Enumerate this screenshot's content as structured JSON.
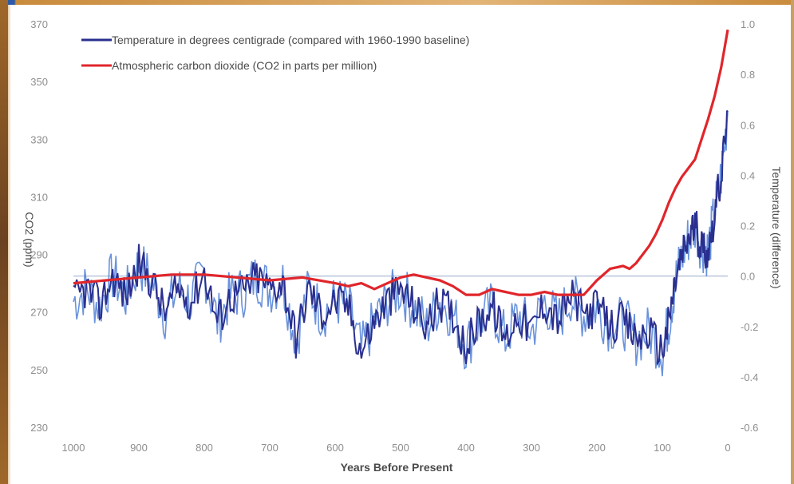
{
  "chart_data": {
    "type": "line",
    "title": "",
    "xlabel": "Years Before Present",
    "ylabel_left": "CO2 (ppm)",
    "ylabel_right": "Temperature (difference)",
    "xlim": [
      1000,
      0
    ],
    "ylim_left": [
      230,
      370
    ],
    "ylim_right": [
      -0.6,
      1.0
    ],
    "x_ticks": [
      "1000",
      "900",
      "800",
      "700",
      "600",
      "500",
      "400",
      "300",
      "200",
      "100",
      "0"
    ],
    "y_left_ticks": [
      "370",
      "350",
      "330",
      "310",
      "290",
      "270",
      "250",
      "230"
    ],
    "y_right_ticks": [
      "1.0",
      "0.8",
      "0.6",
      "0.4",
      "0.2",
      "0.0",
      "-0.2",
      "-0.4",
      "-0.6"
    ],
    "legend_position": "top-left",
    "grid": false,
    "baseline_y_right": 0.0,
    "series": [
      {
        "name": "Temperature in degrees centigrade (compared with 1960-1990 baseline)",
        "axis": "right",
        "color": "#2a2f8f",
        "x": [
          1000,
          980,
          960,
          940,
          920,
          900,
          880,
          860,
          840,
          820,
          800,
          780,
          760,
          740,
          720,
          700,
          680,
          660,
          640,
          620,
          600,
          580,
          560,
          540,
          520,
          500,
          480,
          460,
          440,
          420,
          400,
          380,
          360,
          340,
          320,
          300,
          280,
          260,
          240,
          220,
          200,
          180,
          160,
          140,
          120,
          100,
          90,
          80,
          70,
          60,
          50,
          40,
          30,
          20,
          10,
          0
        ],
        "y": [
          -0.1,
          -0.05,
          -0.12,
          0.0,
          -0.08,
          0.05,
          -0.02,
          -0.15,
          -0.05,
          -0.1,
          0.02,
          -0.18,
          -0.08,
          -0.06,
          0.0,
          -0.05,
          -0.02,
          -0.25,
          -0.05,
          -0.15,
          -0.1,
          -0.12,
          -0.3,
          -0.18,
          -0.1,
          -0.05,
          -0.12,
          -0.2,
          -0.1,
          -0.15,
          -0.28,
          -0.18,
          -0.12,
          -0.25,
          -0.15,
          -0.22,
          -0.1,
          -0.18,
          -0.08,
          -0.15,
          -0.12,
          -0.2,
          -0.18,
          -0.25,
          -0.22,
          -0.3,
          -0.18,
          -0.02,
          0.08,
          0.15,
          0.2,
          0.12,
          0.1,
          0.25,
          0.4,
          0.65
        ]
      },
      {
        "name": "Atmospheric carbon dioxide (CO2 in parts per million)",
        "axis": "left",
        "color": "#e0262b",
        "x": [
          1000,
          950,
          900,
          850,
          800,
          750,
          700,
          650,
          600,
          580,
          560,
          540,
          520,
          500,
          480,
          460,
          440,
          420,
          400,
          380,
          360,
          340,
          320,
          300,
          280,
          260,
          240,
          220,
          200,
          180,
          160,
          150,
          140,
          130,
          120,
          110,
          100,
          90,
          80,
          70,
          60,
          50,
          40,
          30,
          20,
          10,
          0
        ],
        "y": [
          280,
          281,
          282,
          283,
          283,
          282,
          281,
          282,
          280,
          279,
          280,
          278,
          280,
          282,
          283,
          282,
          281,
          279,
          276,
          276,
          278,
          277,
          276,
          276,
          277,
          276,
          276,
          276,
          281,
          285,
          286,
          285,
          287,
          290,
          293,
          297,
          302,
          308,
          313,
          317,
          320,
          323,
          330,
          337,
          345,
          355,
          368
        ]
      }
    ]
  },
  "colors": {
    "temp_line": "#2a2f8f",
    "temp_line_light": "#4f7fd6",
    "co2_line": "#e0262b",
    "baseline": "#b9c6dc",
    "axis_text": "#8e8e8e",
    "label_text": "#4a4a4a"
  }
}
